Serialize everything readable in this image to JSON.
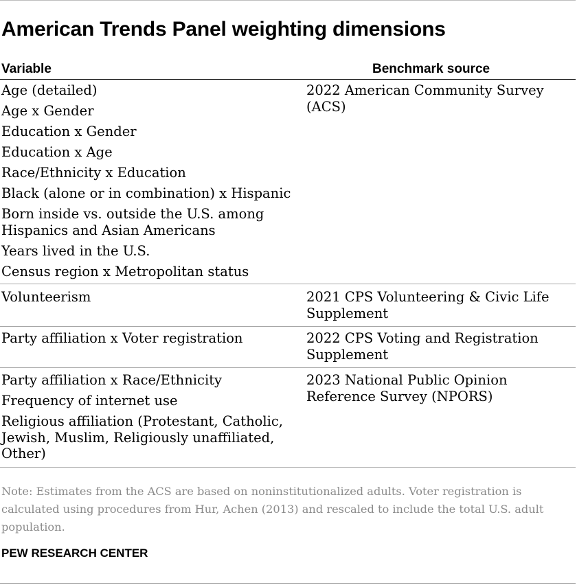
{
  "title": "American Trends Panel weighting dimensions",
  "columns": {
    "variable": "Variable",
    "source": "Benchmark source"
  },
  "groups": [
    {
      "source": "2022 American Community Survey (ACS)",
      "variables": [
        "Age (detailed)",
        "Age x Gender",
        "Education x Gender",
        "Education x Age",
        "Race/Ethnicity x Education",
        "Black (alone or in combination) x Hispanic",
        "Born inside vs. outside the U.S. among Hispanics and Asian Americans",
        "Years lived in the U.S.",
        "Census region x Metropolitan status"
      ]
    },
    {
      "source": "2021 CPS Volunteering & Civic Life Supplement",
      "variables": [
        "Volunteerism"
      ]
    },
    {
      "source": "2022 CPS Voting and Registration Supplement",
      "variables": [
        "Party affiliation x Voter registration"
      ]
    },
    {
      "source": "2023 National Public Opinion Reference Survey (NPORS)",
      "variables": [
        "Party affiliation x Race/Ethnicity",
        "Frequency of internet use",
        "Religious affiliation (Protestant, Catholic, Jewish, Muslim, Religiously unaffiliated, Other)"
      ]
    }
  ],
  "note": "Note: Estimates from the ACS are based on noninstitutionalized adults. Voter registration is calculated using procedures from Hur, Achen (2013) and rescaled to include the total U.S. adult population.",
  "footer": "PEW RESEARCH CENTER"
}
